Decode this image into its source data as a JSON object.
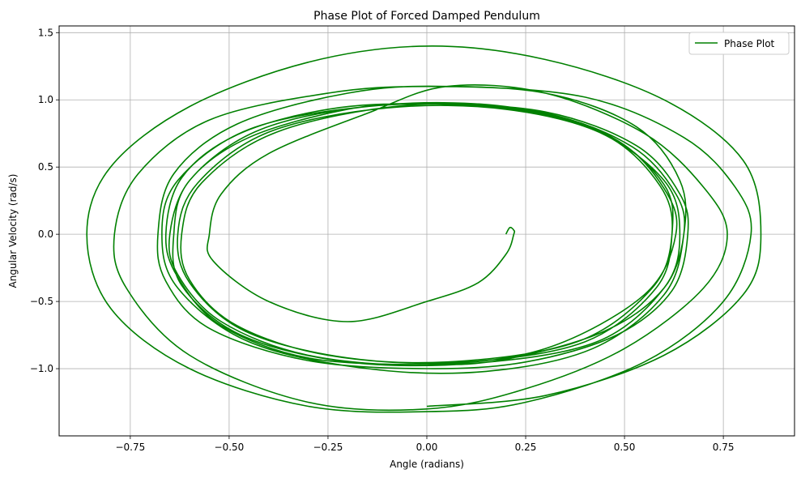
{
  "chart_data": {
    "type": "line",
    "title": "Phase Plot of Forced Damped Pendulum",
    "xlabel": "Angle (radians)",
    "ylabel": "Angular Velocity (rad/s)",
    "xlim": [
      -0.93,
      0.93
    ],
    "ylim": [
      -1.5,
      1.55
    ],
    "xticks": [
      -0.75,
      -0.5,
      -0.25,
      0.0,
      0.25,
      0.5,
      0.75
    ],
    "xtick_labels": [
      "−0.75",
      "−0.50",
      "−0.25",
      "0.00",
      "0.25",
      "0.50",
      "0.75"
    ],
    "yticks": [
      -1.0,
      -0.5,
      0.0,
      0.5,
      1.0,
      1.5
    ],
    "ytick_labels": [
      "−1.0",
      "−0.5",
      "0.0",
      "0.5",
      "1.0",
      "1.5"
    ],
    "grid": true,
    "legend": {
      "position": "top-right",
      "entries": [
        "Phase Plot"
      ]
    },
    "series": [
      {
        "name": "Phase Plot",
        "color": "#008000",
        "points": [
          [
            0.2,
            0.0
          ],
          [
            0.21,
            0.05
          ],
          [
            0.22,
            0.03
          ],
          [
            0.22,
            0.0
          ],
          [
            0.2,
            -0.15
          ],
          [
            0.13,
            -0.36
          ],
          [
            0.0,
            -0.5
          ],
          [
            -0.2,
            -0.65
          ],
          [
            -0.4,
            -0.5
          ],
          [
            -0.54,
            -0.2
          ],
          [
            -0.55,
            0.0
          ],
          [
            -0.52,
            0.3
          ],
          [
            -0.4,
            0.6
          ],
          [
            -0.15,
            0.9
          ],
          [
            0.05,
            1.1
          ],
          [
            0.3,
            1.05
          ],
          [
            0.55,
            0.75
          ],
          [
            0.7,
            0.35
          ],
          [
            0.76,
            0.0
          ],
          [
            0.7,
            -0.4
          ],
          [
            0.5,
            -0.85
          ],
          [
            0.25,
            -1.15
          ],
          [
            0.0,
            -1.3
          ],
          [
            -0.3,
            -1.25
          ],
          [
            -0.6,
            -0.9
          ],
          [
            -0.76,
            -0.4
          ],
          [
            -0.79,
            0.0
          ],
          [
            -0.73,
            0.45
          ],
          [
            -0.55,
            0.85
          ],
          [
            -0.25,
            1.05
          ],
          [
            0.0,
            1.1
          ],
          [
            0.3,
            1.05
          ],
          [
            0.53,
            0.8
          ],
          [
            0.64,
            0.4
          ],
          [
            0.65,
            0.0
          ],
          [
            0.6,
            -0.45
          ],
          [
            0.42,
            -0.85
          ],
          [
            0.15,
            -1.02
          ],
          [
            -0.15,
            -1.0
          ],
          [
            -0.45,
            -0.8
          ],
          [
            -0.63,
            -0.4
          ],
          [
            -0.67,
            0.0
          ],
          [
            -0.63,
            0.4
          ],
          [
            -0.45,
            0.78
          ],
          [
            -0.15,
            0.95
          ],
          [
            0.15,
            0.95
          ],
          [
            0.42,
            0.78
          ],
          [
            0.6,
            0.4
          ],
          [
            0.64,
            0.0
          ],
          [
            0.6,
            -0.4
          ],
          [
            0.43,
            -0.8
          ],
          [
            0.12,
            -0.96
          ],
          [
            -0.2,
            -0.95
          ],
          [
            -0.47,
            -0.75
          ],
          [
            -0.62,
            -0.38
          ],
          [
            -0.64,
            0.0
          ],
          [
            -0.6,
            0.4
          ],
          [
            -0.42,
            0.78
          ],
          [
            -0.12,
            0.96
          ],
          [
            0.2,
            0.95
          ],
          [
            0.45,
            0.75
          ],
          [
            0.6,
            0.37
          ],
          [
            0.62,
            0.0
          ],
          [
            0.58,
            -0.4
          ],
          [
            0.4,
            -0.8
          ],
          [
            0.1,
            -0.95
          ],
          [
            -0.2,
            -0.92
          ],
          [
            -0.46,
            -0.72
          ],
          [
            -0.6,
            -0.36
          ],
          [
            -0.63,
            0.0
          ],
          [
            -0.58,
            0.38
          ],
          [
            -0.4,
            0.76
          ],
          [
            -0.1,
            0.94
          ],
          [
            0.2,
            0.93
          ],
          [
            0.45,
            0.74
          ],
          [
            0.59,
            0.36
          ],
          [
            0.62,
            0.0
          ],
          [
            0.57,
            -0.4
          ],
          [
            0.38,
            -0.8
          ],
          [
            0.05,
            -0.95
          ],
          [
            -0.25,
            -0.9
          ],
          [
            -0.48,
            -0.68
          ],
          [
            -0.6,
            -0.34
          ],
          [
            -0.62,
            0.0
          ],
          [
            -0.57,
            0.38
          ],
          [
            -0.38,
            0.76
          ],
          [
            -0.05,
            0.96
          ],
          [
            0.25,
            0.92
          ],
          [
            0.48,
            0.7
          ],
          [
            0.6,
            0.34
          ],
          [
            0.63,
            0.0
          ],
          [
            0.55,
            -0.45
          ],
          [
            0.3,
            -0.85
          ],
          [
            0.0,
            -0.97
          ],
          [
            -0.3,
            -0.9
          ],
          [
            -0.52,
            -0.65
          ],
          [
            -0.63,
            -0.3
          ],
          [
            -0.65,
            0.0
          ],
          [
            -0.6,
            0.4
          ],
          [
            -0.45,
            0.72
          ],
          [
            -0.2,
            0.93
          ],
          [
            0.0,
            0.97
          ],
          [
            0.3,
            0.9
          ],
          [
            0.52,
            0.65
          ],
          [
            0.63,
            0.3
          ],
          [
            0.65,
            0.0
          ],
          [
            0.6,
            -0.4
          ],
          [
            0.45,
            -0.72
          ],
          [
            0.2,
            -0.93
          ],
          [
            0.0,
            -0.97
          ],
          [
            -0.3,
            -0.92
          ],
          [
            -0.52,
            -0.68
          ],
          [
            -0.63,
            -0.32
          ],
          [
            -0.66,
            0.0
          ],
          [
            -0.62,
            0.42
          ],
          [
            -0.48,
            0.74
          ],
          [
            -0.25,
            0.93
          ],
          [
            0.0,
            0.97
          ],
          [
            0.3,
            0.91
          ],
          [
            0.53,
            0.66
          ],
          [
            0.64,
            0.3
          ],
          [
            0.66,
            0.0
          ],
          [
            0.62,
            -0.42
          ],
          [
            0.48,
            -0.75
          ],
          [
            0.25,
            -0.95
          ],
          [
            0.0,
            -1.0
          ],
          [
            -0.3,
            -0.94
          ],
          [
            -0.55,
            -0.7
          ],
          [
            -0.66,
            -0.35
          ],
          [
            -0.68,
            0.0
          ],
          [
            -0.64,
            0.45
          ],
          [
            -0.48,
            0.82
          ],
          [
            -0.2,
            1.05
          ],
          [
            0.05,
            1.1
          ],
          [
            0.4,
            1.02
          ],
          [
            0.65,
            0.72
          ],
          [
            0.78,
            0.35
          ],
          [
            0.82,
            0.0
          ],
          [
            0.75,
            -0.5
          ],
          [
            0.55,
            -0.95
          ],
          [
            0.25,
            -1.25
          ],
          [
            0.0,
            -1.32
          ],
          [
            -0.3,
            -1.28
          ],
          [
            -0.6,
            -1.0
          ],
          [
            -0.8,
            -0.55
          ],
          [
            -0.86,
            0.0
          ],
          [
            -0.8,
            0.5
          ],
          [
            -0.6,
            0.95
          ],
          [
            -0.3,
            1.28
          ],
          [
            0.0,
            1.4
          ],
          [
            0.3,
            1.3
          ],
          [
            0.6,
            1.0
          ],
          [
            0.8,
            0.55
          ],
          [
            0.845,
            0.0
          ],
          [
            0.8,
            -0.45
          ],
          [
            0.6,
            -0.9
          ],
          [
            0.3,
            -1.2
          ],
          [
            0.0,
            -1.28
          ]
        ]
      }
    ]
  }
}
